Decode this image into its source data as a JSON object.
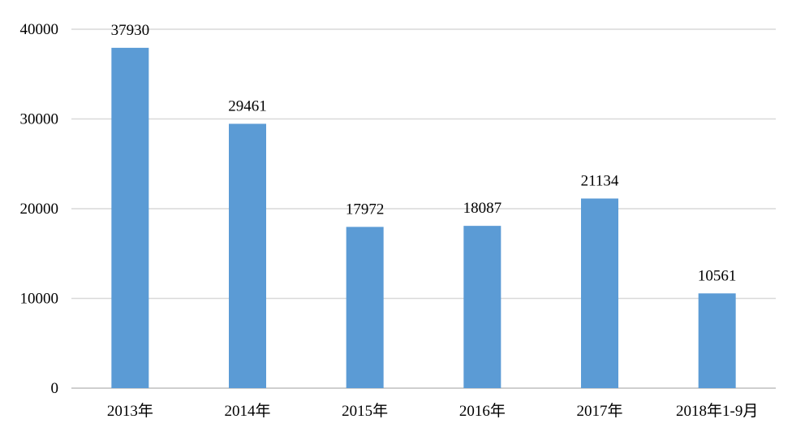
{
  "chart_data": {
    "type": "bar",
    "title": "",
    "xlabel": "",
    "ylabel": "",
    "categories": [
      "2013年",
      "2014年",
      "2015年",
      "2016年",
      "2017年",
      "2018年1-9月"
    ],
    "values": [
      37930,
      29461,
      17972,
      18087,
      21134,
      10561
    ],
    "data_labels": [
      "37930",
      "29461",
      "17972",
      "18087",
      "21134",
      "10561"
    ],
    "ylim": [
      0,
      40000
    ],
    "yticks": [
      0,
      10000,
      20000,
      30000,
      40000
    ],
    "ytick_labels": [
      "0",
      "10000",
      "20000",
      "30000",
      "40000"
    ],
    "grid": true,
    "legend": "none",
    "bar_color": "#5b9bd5"
  }
}
